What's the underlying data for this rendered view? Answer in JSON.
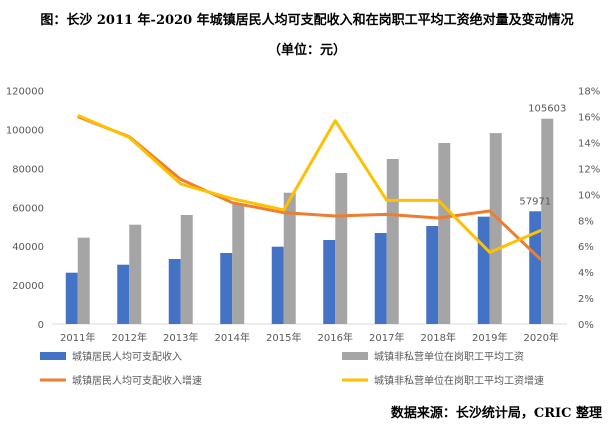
{
  "title": "图：长沙 2011 年-2020 年城镇居民人均可支配收入和在岗职工平均工资绝对量及变动情况",
  "subtitle": "（单位：元）",
  "source": "数据来源：长沙统计局，CRIC 整理",
  "chart_data": {
    "type": "bar+line",
    "categories": [
      "2011年",
      "2012年",
      "2013年",
      "2014年",
      "2015年",
      "2016年",
      "2017年",
      "2018年",
      "2019年",
      "2020年"
    ],
    "y_left": {
      "range": [
        0,
        120000
      ],
      "ticks": [
        "0",
        "20000",
        "40000",
        "60000",
        "80000",
        "100000",
        "120000"
      ]
    },
    "y_right": {
      "range": [
        0,
        18
      ],
      "ticks": [
        "0%",
        "2%",
        "4%",
        "6%",
        "8%",
        "10%",
        "12%",
        "14%",
        "16%",
        "18%"
      ]
    },
    "series": [
      {
        "name": "城镇居民人均可支配收入",
        "type": "bar",
        "axis": "left",
        "color": "#4472C4",
        "values": [
          26390,
          30500,
          33430,
          36520,
          39760,
          43200,
          46800,
          50400,
          55200,
          57971
        ]
      },
      {
        "name": "城镇非私营单位在岗职工平均工资",
        "type": "bar",
        "axis": "left",
        "color": "#A5A5A5",
        "values": [
          44400,
          51080,
          56070,
          62000,
          67530,
          77670,
          84870,
          93100,
          98200,
          105603
        ]
      },
      {
        "name": "城镇居民人均可支配收入增速",
        "type": "line",
        "axis": "right",
        "color": "#ED7D31",
        "values": [
          16.0,
          14.45,
          11.16,
          9.36,
          8.59,
          8.33,
          8.46,
          8.18,
          8.72,
          4.94
        ]
      },
      {
        "name": "城镇非私营单位在岗职工平均工资增速",
        "type": "line",
        "axis": "right",
        "color": "#FFC000",
        "values": [
          16.1,
          14.4,
          10.8,
          9.67,
          8.8,
          15.69,
          9.54,
          9.54,
          5.53,
          7.23
        ]
      }
    ],
    "data_labels": [
      {
        "series": 0,
        "index": 9,
        "text": "57971"
      },
      {
        "series": 1,
        "index": 9,
        "text": "105603"
      }
    ],
    "grid": false,
    "legend": "bottom"
  }
}
